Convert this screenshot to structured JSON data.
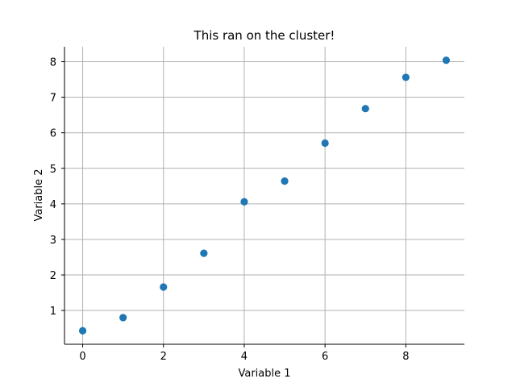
{
  "chart_data": {
    "type": "scatter",
    "title": "This ran on the cluster!",
    "xlabel": "Variable 1",
    "ylabel": "Variable 2",
    "x": [
      0,
      1,
      2,
      3,
      4,
      5,
      6,
      7,
      8,
      9
    ],
    "y": [
      0.43,
      0.8,
      1.66,
      2.61,
      4.06,
      4.64,
      5.71,
      6.68,
      7.56,
      8.04
    ],
    "xlim": [
      -0.45,
      9.45
    ],
    "ylim": [
      0.05,
      8.42
    ],
    "xticks": [
      0,
      2,
      4,
      6,
      8
    ],
    "yticks": [
      1,
      2,
      3,
      4,
      5,
      6,
      7,
      8
    ],
    "grid": true,
    "spines": "left-bottom",
    "marker_color": "#1f77b4",
    "grid_color": "#b0b0b0"
  }
}
